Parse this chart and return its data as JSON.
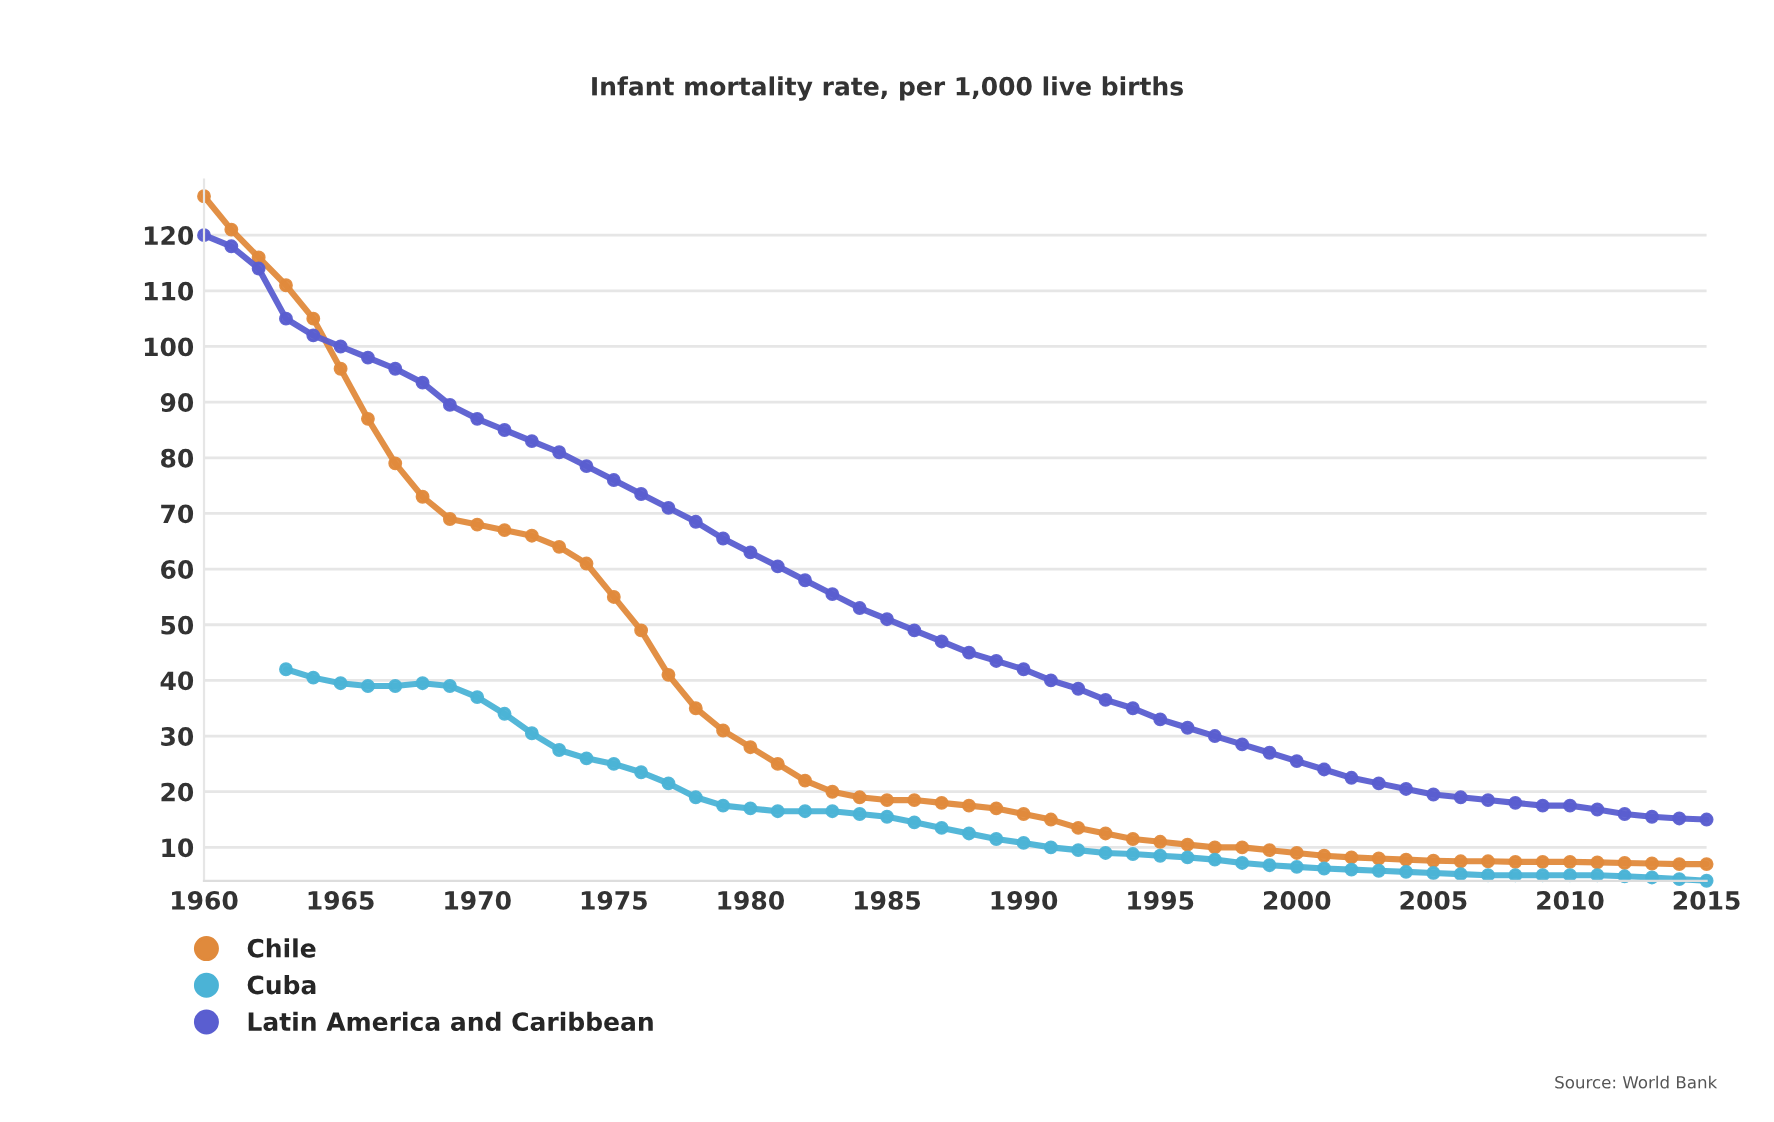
{
  "chart_data": {
    "type": "line",
    "title": "Infant mortality rate, per 1,000 live births",
    "x": [
      1960,
      1961,
      1962,
      1963,
      1964,
      1965,
      1966,
      1967,
      1968,
      1969,
      1970,
      1971,
      1972,
      1973,
      1974,
      1975,
      1976,
      1977,
      1978,
      1979,
      1980,
      1981,
      1982,
      1983,
      1984,
      1985,
      1986,
      1987,
      1988,
      1989,
      1990,
      1991,
      1992,
      1993,
      1994,
      1995,
      1996,
      1997,
      1998,
      1999,
      2000,
      2001,
      2002,
      2003,
      2004,
      2005,
      2006,
      2007,
      2008,
      2009,
      2010,
      2011,
      2012,
      2013,
      2014,
      2015
    ],
    "series": [
      {
        "name": "Chile",
        "color": "#e08a3c",
        "values": [
          127,
          121,
          116,
          111,
          105,
          96,
          87,
          79,
          73,
          69,
          68,
          67,
          66,
          64,
          61,
          55,
          49,
          41,
          35,
          31,
          28,
          25,
          22,
          20,
          19,
          18.5,
          18.5,
          18,
          17.5,
          17,
          16,
          15,
          13.5,
          12.5,
          11.5,
          11,
          10.5,
          10,
          10,
          9.5,
          9,
          8.5,
          8.2,
          8,
          7.8,
          7.6,
          7.5,
          7.5,
          7.4,
          7.4,
          7.4,
          7.3,
          7.2,
          7.1,
          7,
          7
        ]
      },
      {
        "name": "Cuba",
        "color": "#4bb3d6",
        "values": [
          null,
          null,
          null,
          42,
          40.5,
          39.5,
          39,
          39,
          39.5,
          39,
          37,
          34,
          30.5,
          27.5,
          26,
          25,
          23.5,
          21.5,
          19,
          17.5,
          17,
          16.5,
          16.5,
          16.5,
          16,
          15.5,
          14.5,
          13.5,
          12.5,
          11.5,
          10.8,
          10,
          9.5,
          9,
          8.8,
          8.5,
          8.2,
          7.8,
          7.2,
          6.8,
          6.5,
          6.2,
          6,
          5.8,
          5.6,
          5.4,
          5.2,
          5,
          5,
          5,
          5,
          5,
          4.8,
          4.6,
          4.3,
          4
        ]
      },
      {
        "name": "Latin America and Caribbean",
        "color": "#5a5ed0",
        "values": [
          120,
          118,
          114,
          105,
          102,
          100,
          98,
          96,
          93.5,
          89.5,
          87,
          85,
          83,
          81,
          78.5,
          76,
          73.5,
          71,
          68.5,
          65.5,
          63,
          60.5,
          58,
          55.5,
          53,
          51,
          49,
          47,
          45,
          43.5,
          42,
          40,
          38.5,
          36.5,
          35,
          33,
          31.5,
          30,
          28.5,
          27,
          25.5,
          24,
          22.5,
          21.5,
          20.5,
          19.5,
          19,
          18.5,
          18,
          17.5,
          17.5,
          16.8,
          16,
          15.5,
          15.2,
          15
        ]
      }
    ],
    "xlim": [
      1960,
      2015
    ],
    "xticks": [
      1960,
      1965,
      1970,
      1975,
      1980,
      1985,
      1990,
      1995,
      2000,
      2005,
      2010,
      2015
    ],
    "ylim": [
      4,
      130
    ],
    "yticks": [
      10,
      20,
      30,
      40,
      50,
      60,
      70,
      80,
      90,
      100,
      110,
      120
    ],
    "grid": "y",
    "legend": "bottom left",
    "marker": "circle",
    "line_style": "solid",
    "annotations": [
      "Source: World Bank"
    ]
  }
}
